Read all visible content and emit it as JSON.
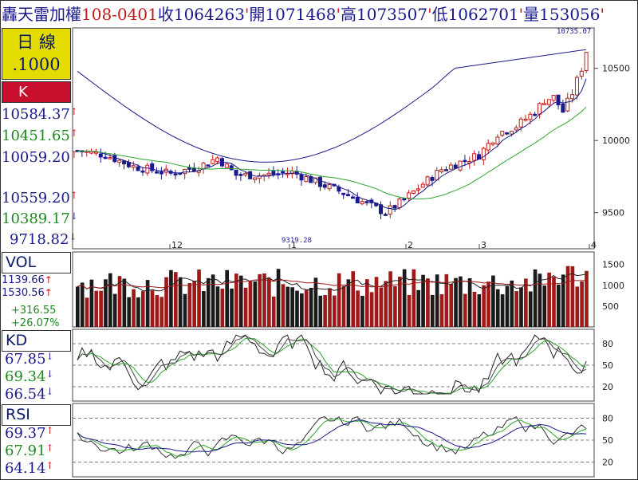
{
  "header": {
    "name": "轟天雷加權",
    "date": "108-0401",
    "close_label": "收",
    "close": "1064263",
    "open_label": "開",
    "open": "1071468",
    "high_label": "高",
    "high": "1073507",
    "low_label": "低",
    "low": "1062701",
    "volume_label": "量",
    "volume": "153056"
  },
  "left_panel": {
    "period_line1": "日 線",
    "period_line2": ".1000",
    "k_label": "K",
    "ma_values": [
      "10584.37",
      "10451.65",
      "10059.20"
    ],
    "ma_arrows": [
      "↑",
      "↑",
      "↑"
    ],
    "lower_values": [
      "10559.20",
      "10389.17",
      "9718.82"
    ],
    "lower_arrows": [
      "↑",
      "↓",
      "↓"
    ],
    "vol_label": "VOL",
    "vol_values": [
      "1139.66",
      "1530.56"
    ],
    "vol_arrows": [
      "↑",
      "↑"
    ],
    "vol_changes": [
      "+316.55",
      "+26.07%"
    ],
    "kd_label": "KD",
    "kd_values": [
      "67.85",
      "69.34",
      "66.54"
    ],
    "kd_arrows": [
      "↓",
      "↓",
      "↓"
    ],
    "rsi_label": "RSI",
    "rsi_values": [
      "69.37",
      "67.91",
      "64.14"
    ],
    "rsi_arrows": [
      "↑",
      "↑",
      "↑"
    ]
  },
  "colors": {
    "up": "#c41a1a",
    "down": "#1a1a8c",
    "ma_short": "#1a1a8c",
    "ma_mid": "#2aa52a",
    "ma_long": "#1a1a8c",
    "vol_up": "#a01818",
    "vol_down": "#1a1a1a",
    "k_line": "#222222",
    "d_line": "#2aa52a"
  },
  "chart_data": [
    {
      "type": "candlestick",
      "title": "",
      "price_ticks": [
        "10500",
        "10000",
        "9500"
      ],
      "ylim": [
        9250,
        10780
      ],
      "month_labels": [
        "12",
        "1",
        "2",
        "3",
        "4"
      ],
      "annotations": {
        "high_label": "10735.07",
        "low_label": "9319.28"
      },
      "ma_short_end": 10584.37,
      "ma_mid_end": 10451.65,
      "ma_long_end": 10059.2
    },
    {
      "type": "bar",
      "title": "VOL",
      "vol_ticks": [
        "1500",
        "1000",
        "500"
      ],
      "ylim": [
        0,
        1800
      ],
      "last_volume": 1530.56
    },
    {
      "type": "line",
      "title": "KD",
      "ticks": [
        "80",
        "50",
        "20"
      ],
      "ylim": [
        0,
        100
      ],
      "k_last": 67.85,
      "d_last": 69.34
    },
    {
      "type": "line",
      "title": "RSI",
      "ticks": [
        "80",
        "50",
        "20"
      ],
      "ylim": [
        0,
        100
      ],
      "rsi_last": [
        69.37,
        67.91,
        64.14
      ]
    }
  ]
}
